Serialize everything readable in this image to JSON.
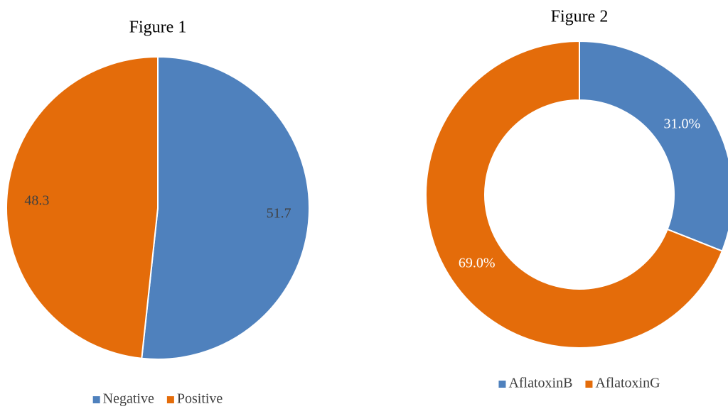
{
  "chart_data": [
    {
      "type": "pie",
      "title": "Figure 1",
      "categories": [
        "Negative",
        "Positive"
      ],
      "values": [
        51.7,
        48.3
      ],
      "colors": [
        "#4f81bd",
        "#e46c0a"
      ]
    },
    {
      "type": "donut",
      "title": "Figure 2",
      "categories": [
        "AflatoxinB",
        "AflatoxinG"
      ],
      "values": [
        31.0,
        69.0
      ],
      "value_labels": [
        "31.0%",
        "69.0%"
      ],
      "colors": [
        "#4f81bd",
        "#e46c0a"
      ]
    }
  ]
}
